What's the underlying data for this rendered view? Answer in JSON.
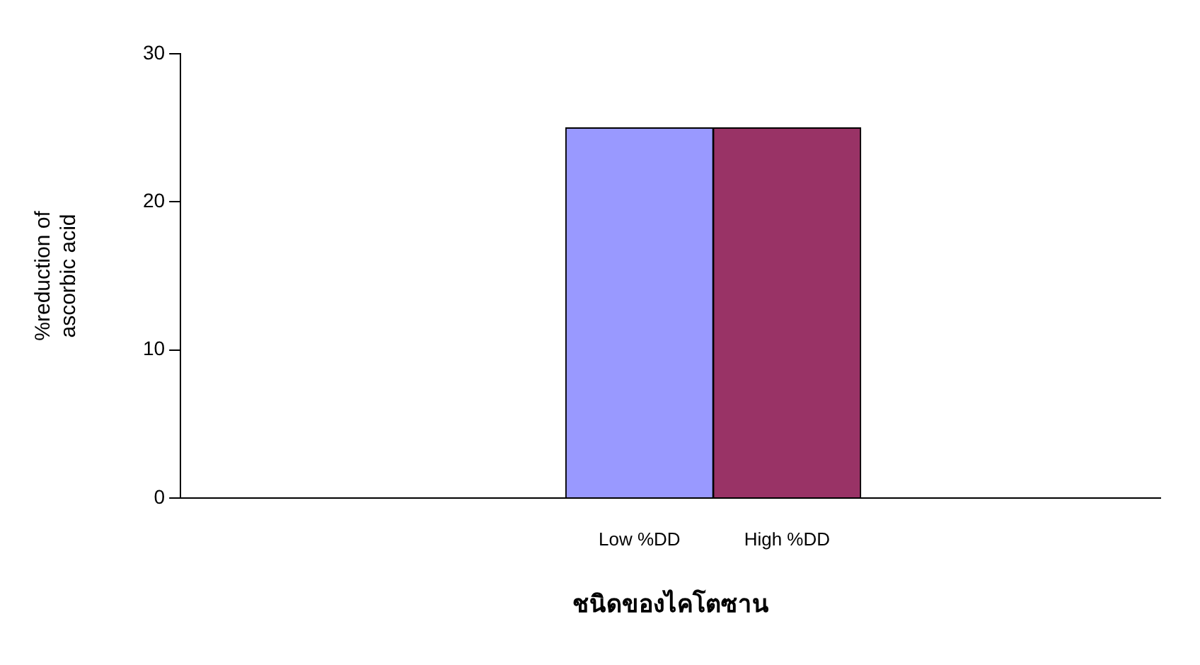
{
  "chart_data": {
    "type": "bar",
    "categories": [
      "Low %DD",
      "High %DD"
    ],
    "values": [
      25,
      25
    ],
    "colors": [
      "#9999ff",
      "#993366"
    ],
    "xlabel": "ชนิดของไคโตซาน",
    "ylabel": "%reduction of\nascorbic acid",
    "ylim": [
      0,
      30
    ],
    "yticks": [
      0,
      10,
      20,
      30
    ],
    "grid": false,
    "legend": false
  }
}
